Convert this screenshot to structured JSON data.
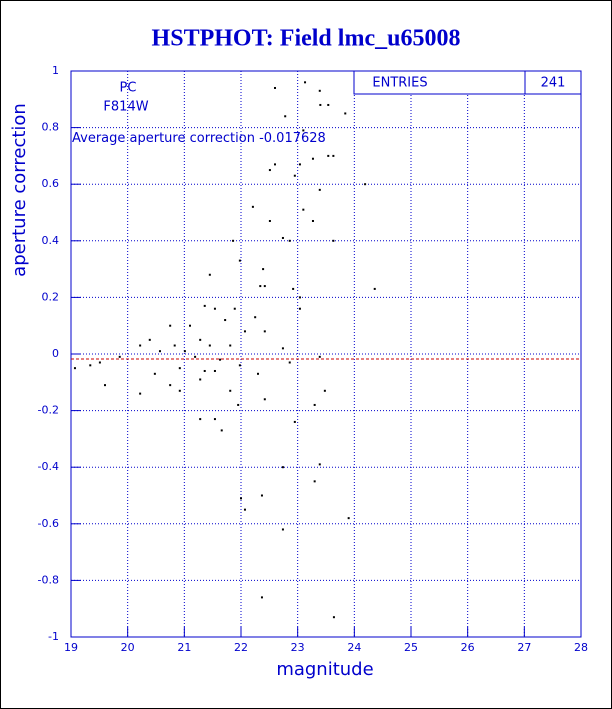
{
  "chart_data": {
    "type": "scatter",
    "title": "HSTPHOT: Field lmc_u65008",
    "x_label": "magnitude",
    "y_label": "aperture correction",
    "annotations": {
      "camera": "PC",
      "filter": "F814W",
      "average_label": "Average aperture correction",
      "average": -0.017628
    },
    "stats": {
      "label": "ENTRIES",
      "value": 241
    },
    "color": "#000000",
    "mean_line_color": "#cc0000",
    "grid": true,
    "xlim": [
      19,
      28
    ],
    "xticks": [
      19,
      20,
      21,
      22,
      23,
      24,
      25,
      26,
      27,
      28
    ],
    "ylim": [
      -1,
      1
    ],
    "yticks": [
      -1,
      -0.8,
      -0.6,
      -0.4,
      -0.2,
      0,
      0.2,
      0.4,
      0.6,
      0.8,
      1
    ],
    "x": [
      23.13,
      22.6,
      23.39,
      23.84,
      23.4,
      23.54,
      22.78,
      23.54,
      23.63,
      23.27,
      23.1,
      22.51,
      22.6,
      22.95,
      23.04,
      24.19,
      23.1,
      22.21,
      23.39,
      22.51,
      23.27,
      21.86,
      22.74,
      22.86,
      23.63,
      22.39,
      21.98,
      21.45,
      24.36,
      22.34,
      22.42,
      22.92,
      23.04,
      21.36,
      21.54,
      21.89,
      22.25,
      21.1,
      21.72,
      23.04,
      22.42,
      22.07,
      20.75,
      20.39,
      20.22,
      21.28,
      20.83,
      21.01,
      21.45,
      21.81,
      22.74,
      20.57,
      19.86,
      19.51,
      19.07,
      19.34,
      21.19,
      21.63,
      21.98,
      20.92,
      21.36,
      21.54,
      20.48,
      22.3,
      23.39,
      22.86,
      21.28,
      19.6,
      20.75,
      21.81,
      20.22,
      20.92,
      23.48,
      22.42,
      21.95,
      23.3,
      21.28,
      21.54,
      21.66,
      22.95,
      23.39,
      22.74,
      23.3,
      22.0,
      22.37,
      22.07,
      23.9,
      22.74,
      22.37,
      23.64
    ],
    "values": [
      0.96,
      0.94,
      0.93,
      0.85,
      0.88,
      0.88,
      0.84,
      0.7,
      0.7,
      0.69,
      0.79,
      0.65,
      0.67,
      0.63,
      0.67,
      0.6,
      0.51,
      0.52,
      0.58,
      0.47,
      0.47,
      0.4,
      0.41,
      0.4,
      0.4,
      0.3,
      0.33,
      0.28,
      0.23,
      0.24,
      0.24,
      0.23,
      0.2,
      0.17,
      0.16,
      0.16,
      0.13,
      0.1,
      0.12,
      0.16,
      0.08,
      0.08,
      0.1,
      0.05,
      0.03,
      0.05,
      0.03,
      0.01,
      0.03,
      0.03,
      0.02,
      0.01,
      -0.01,
      -0.03,
      -0.05,
      -0.04,
      -0.01,
      -0.02,
      -0.04,
      -0.05,
      -0.06,
      -0.06,
      -0.07,
      -0.07,
      -0.01,
      -0.03,
      -0.09,
      -0.11,
      -0.11,
      -0.13,
      -0.14,
      -0.13,
      -0.13,
      -0.16,
      -0.18,
      -0.18,
      -0.23,
      -0.23,
      -0.27,
      -0.24,
      -0.39,
      -0.4,
      -0.45,
      -0.51,
      -0.5,
      -0.55,
      -0.58,
      -0.62,
      -0.86,
      -0.93
    ]
  }
}
